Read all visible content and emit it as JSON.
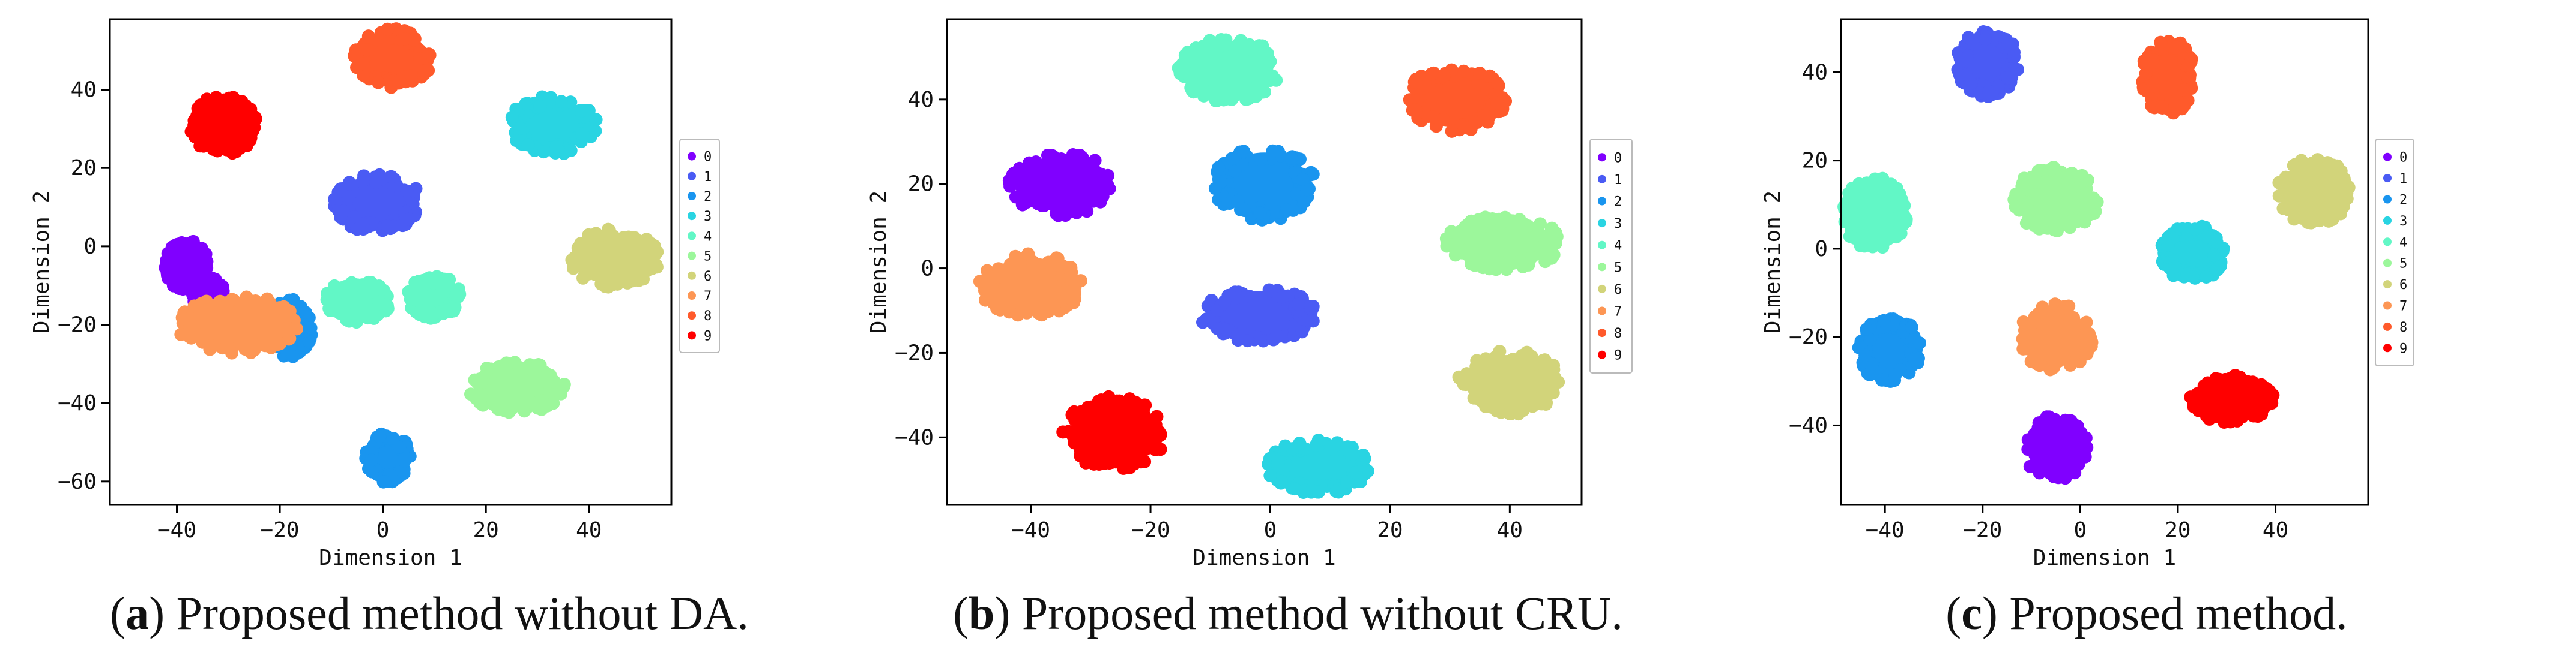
{
  "legend_labels": [
    "0",
    "1",
    "2",
    "3",
    "4",
    "5",
    "6",
    "7",
    "8",
    "9"
  ],
  "class_colors": [
    "#8000ff",
    "#4a5bf4",
    "#1995ef",
    "#29d4e2",
    "#62f7c6",
    "#9cf79b",
    "#d2d47a",
    "#fd9654",
    "#ff5a2b",
    "#ff0000"
  ],
  "captions": [
    {
      "letter": "a",
      "text": "Proposed method without DA."
    },
    {
      "letter": "b",
      "text": "Proposed method without CRU."
    },
    {
      "letter": "c",
      "text": "Proposed method."
    }
  ],
  "chart_data": [
    {
      "type": "scatter",
      "title": "",
      "xlabel": "Dimension 1",
      "ylabel": "Dimension 2",
      "xlim": [
        -53,
        56
      ],
      "ylim": [
        -66,
        58
      ],
      "xticks": [
        -40,
        -20,
        0,
        20,
        40
      ],
      "yticks": [
        -60,
        -40,
        -20,
        0,
        20,
        40
      ],
      "grid": false,
      "legend_position": "right",
      "series": [
        {
          "name": "0",
          "clusters": [
            {
              "cx": -38,
              "cy": -5,
              "rx": 4,
              "ry": 6
            },
            {
              "cx": -34,
              "cy": -12,
              "rx": 3,
              "ry": 4
            }
          ]
        },
        {
          "name": "1",
          "clusters": [
            {
              "cx": -1,
              "cy": 11,
              "rx": 8,
              "ry": 7
            }
          ]
        },
        {
          "name": "2",
          "clusters": [
            {
              "cx": 1,
              "cy": -54,
              "rx": 4,
              "ry": 6
            },
            {
              "cx": -18,
              "cy": -21,
              "rx": 4,
              "ry": 7
            }
          ]
        },
        {
          "name": "3",
          "clusters": [
            {
              "cx": 33,
              "cy": 31,
              "rx": 8,
              "ry": 7
            }
          ]
        },
        {
          "name": "4",
          "clusters": [
            {
              "cx": -5,
              "cy": -14,
              "rx": 6,
              "ry": 5
            },
            {
              "cx": 10,
              "cy": -13,
              "rx": 5,
              "ry": 5
            }
          ]
        },
        {
          "name": "5",
          "clusters": [
            {
              "cx": 26,
              "cy": -36,
              "rx": 9,
              "ry": 6
            }
          ]
        },
        {
          "name": "6",
          "clusters": [
            {
              "cx": 45,
              "cy": -3,
              "rx": 8,
              "ry": 7
            }
          ]
        },
        {
          "name": "7",
          "clusters": [
            {
              "cx": -28,
              "cy": -20,
              "rx": 11,
              "ry": 7
            }
          ]
        },
        {
          "name": "8",
          "clusters": [
            {
              "cx": 2,
              "cy": 48,
              "rx": 7,
              "ry": 7
            }
          ]
        },
        {
          "name": "9",
          "clusters": [
            {
              "cx": -31,
              "cy": 31,
              "rx": 6,
              "ry": 7
            }
          ]
        }
      ]
    },
    {
      "type": "scatter",
      "title": "",
      "xlabel": "Dimension 1",
      "ylabel": "Dimension 2",
      "xlim": [
        -54,
        52
      ],
      "ylim": [
        -56,
        59
      ],
      "xticks": [
        -40,
        -20,
        0,
        20,
        40
      ],
      "yticks": [
        -40,
        -20,
        0,
        20,
        40
      ],
      "grid": false,
      "legend_position": "right",
      "series": [
        {
          "name": "0",
          "clusters": [
            {
              "cx": -35,
              "cy": 20,
              "rx": 8,
              "ry": 7
            }
          ]
        },
        {
          "name": "1",
          "clusters": [
            {
              "cx": -2,
              "cy": -11,
              "rx": 9,
              "ry": 6
            }
          ]
        },
        {
          "name": "2",
          "clusters": [
            {
              "cx": -1,
              "cy": 20,
              "rx": 8,
              "ry": 8
            }
          ]
        },
        {
          "name": "3",
          "clusters": [
            {
              "cx": 8,
              "cy": -47,
              "rx": 8,
              "ry": 6
            }
          ]
        },
        {
          "name": "4",
          "clusters": [
            {
              "cx": -7,
              "cy": 47,
              "rx": 8,
              "ry": 7
            }
          ]
        },
        {
          "name": "5",
          "clusters": [
            {
              "cx": 39,
              "cy": 6,
              "rx": 9,
              "ry": 6
            }
          ]
        },
        {
          "name": "6",
          "clusters": [
            {
              "cx": 40,
              "cy": -27,
              "rx": 8,
              "ry": 7
            }
          ]
        },
        {
          "name": "7",
          "clusters": [
            {
              "cx": -40,
              "cy": -4,
              "rx": 8,
              "ry": 7
            }
          ]
        },
        {
          "name": "8",
          "clusters": [
            {
              "cx": 31,
              "cy": 40,
              "rx": 8,
              "ry": 7
            }
          ]
        },
        {
          "name": "9",
          "clusters": [
            {
              "cx": -26,
              "cy": -39,
              "rx": 8,
              "ry": 8
            }
          ]
        }
      ]
    },
    {
      "type": "scatter",
      "title": "",
      "xlabel": "Dimension 1",
      "ylabel": "Dimension 2",
      "xlim": [
        -49,
        59
      ],
      "ylim": [
        -58,
        52
      ],
      "xticks": [
        -40,
        -20,
        0,
        20,
        40
      ],
      "yticks": [
        -40,
        -20,
        0,
        20,
        40
      ],
      "grid": false,
      "legend_position": "right",
      "series": [
        {
          "name": "0",
          "clusters": [
            {
              "cx": -5,
              "cy": -45,
              "rx": 6,
              "ry": 7
            }
          ]
        },
        {
          "name": "1",
          "clusters": [
            {
              "cx": -19,
              "cy": 42,
              "rx": 6,
              "ry": 7
            }
          ]
        },
        {
          "name": "2",
          "clusters": [
            {
              "cx": -39,
              "cy": -23,
              "rx": 6,
              "ry": 7
            }
          ]
        },
        {
          "name": "3",
          "clusters": [
            {
              "cx": 23,
              "cy": -1,
              "rx": 6,
              "ry": 6
            }
          ]
        },
        {
          "name": "4",
          "clusters": [
            {
              "cx": -42,
              "cy": 8,
              "rx": 6,
              "ry": 8
            }
          ]
        },
        {
          "name": "5",
          "clusters": [
            {
              "cx": -5,
              "cy": 11,
              "rx": 8,
              "ry": 7
            }
          ]
        },
        {
          "name": "6",
          "clusters": [
            {
              "cx": 48,
              "cy": 13,
              "rx": 7,
              "ry": 7
            }
          ]
        },
        {
          "name": "7",
          "clusters": [
            {
              "cx": -5,
              "cy": -20,
              "rx": 7,
              "ry": 7
            }
          ]
        },
        {
          "name": "8",
          "clusters": [
            {
              "cx": 18,
              "cy": 39,
              "rx": 5,
              "ry": 8
            }
          ]
        },
        {
          "name": "9",
          "clusters": [
            {
              "cx": 31,
              "cy": -34,
              "rx": 8,
              "ry": 5
            }
          ]
        }
      ]
    }
  ]
}
